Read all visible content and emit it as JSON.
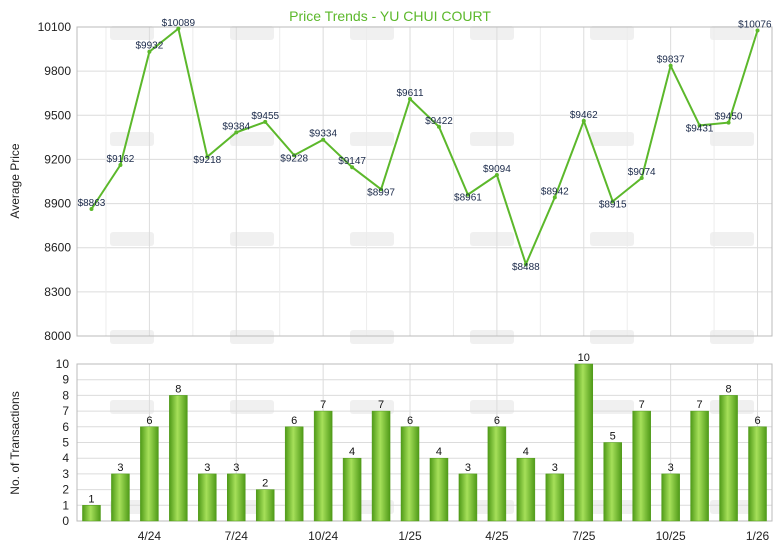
{
  "chart_data": [
    {
      "type": "line",
      "title": "Price Trends - YU CHUI COURT",
      "ylabel": "Average Price",
      "ylim": [
        8000,
        10100
      ],
      "yticks": [
        8000,
        8300,
        8600,
        8900,
        9200,
        9500,
        9800,
        10100
      ],
      "value_prefix": "$",
      "series": [
        {
          "values": [
            8863,
            9162,
            9932,
            10089,
            9218,
            9384,
            9455,
            9228,
            9334,
            9147,
            8997,
            9611,
            9422,
            8961,
            9094,
            8488,
            8942,
            9462,
            8915,
            9074,
            9837,
            9431,
            9450,
            10076
          ]
        }
      ],
      "line_color": "#5cb82b",
      "grid": true
    },
    {
      "type": "bar",
      "ylabel": "No. of Transactions",
      "ylim": [
        0,
        10
      ],
      "yticks": [
        0,
        1,
        2,
        3,
        4,
        5,
        6,
        7,
        8,
        9,
        10
      ],
      "x_tick_labels": [
        {
          "index": 2,
          "label": "4/24"
        },
        {
          "index": 5,
          "label": "7/24"
        },
        {
          "index": 8,
          "label": "10/24"
        },
        {
          "index": 11,
          "label": "1/25"
        },
        {
          "index": 14,
          "label": "4/25"
        },
        {
          "index": 17,
          "label": "7/25"
        },
        {
          "index": 20,
          "label": "10/25"
        },
        {
          "index": 23,
          "label": "1/26"
        }
      ],
      "values": [
        1,
        3,
        6,
        8,
        3,
        3,
        2,
        6,
        7,
        4,
        7,
        6,
        4,
        3,
        6,
        4,
        3,
        10,
        5,
        7,
        3,
        7,
        8,
        6
      ],
      "bar_color": "#76c52a",
      "grid": true
    }
  ]
}
